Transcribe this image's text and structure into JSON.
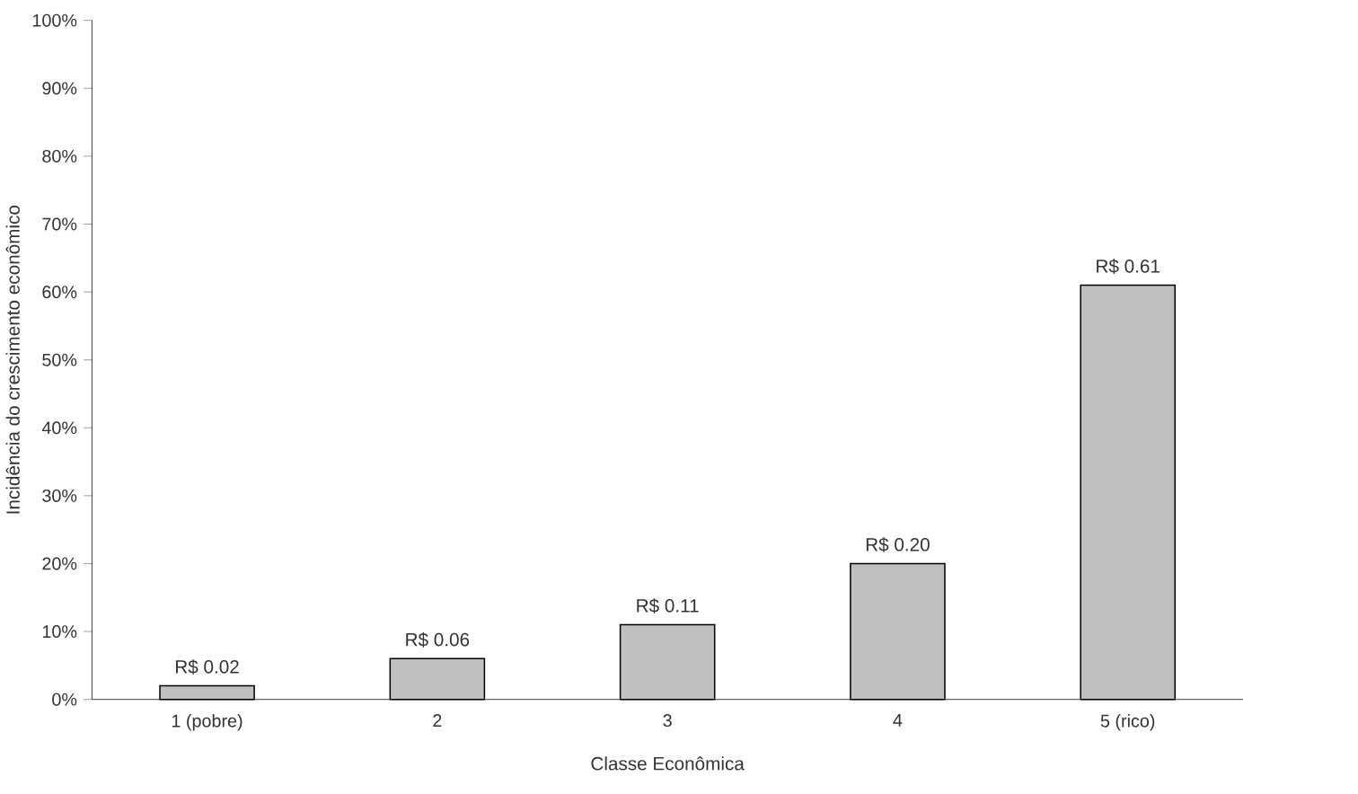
{
  "chart_data": {
    "type": "bar",
    "xlabel": "Classe Econômica",
    "ylabel": "Incidência do crescimento econômico",
    "categories": [
      "1 (pobre)",
      "2",
      "3",
      "4",
      "5 (rico)"
    ],
    "values": [
      2,
      6,
      11,
      20,
      61
    ],
    "value_labels": [
      "R$ 0.02",
      "R$ 0.06",
      "R$ 0.11",
      "R$ 0.20",
      "R$ 0.61"
    ],
    "color": "#c0c0c0",
    "ylim": [
      0,
      100
    ],
    "yticks": [
      {
        "value": 0,
        "label": "0%"
      },
      {
        "value": 10,
        "label": "10%"
      },
      {
        "value": 20,
        "label": "20%"
      },
      {
        "value": 30,
        "label": "30%"
      },
      {
        "value": 40,
        "label": "40%"
      },
      {
        "value": 50,
        "label": "50%"
      },
      {
        "value": 60,
        "label": "60%"
      },
      {
        "value": 70,
        "label": "70%"
      },
      {
        "value": 80,
        "label": "80%"
      },
      {
        "value": 90,
        "label": "90%"
      },
      {
        "value": 100,
        "label": "100%"
      }
    ],
    "grid": false
  }
}
